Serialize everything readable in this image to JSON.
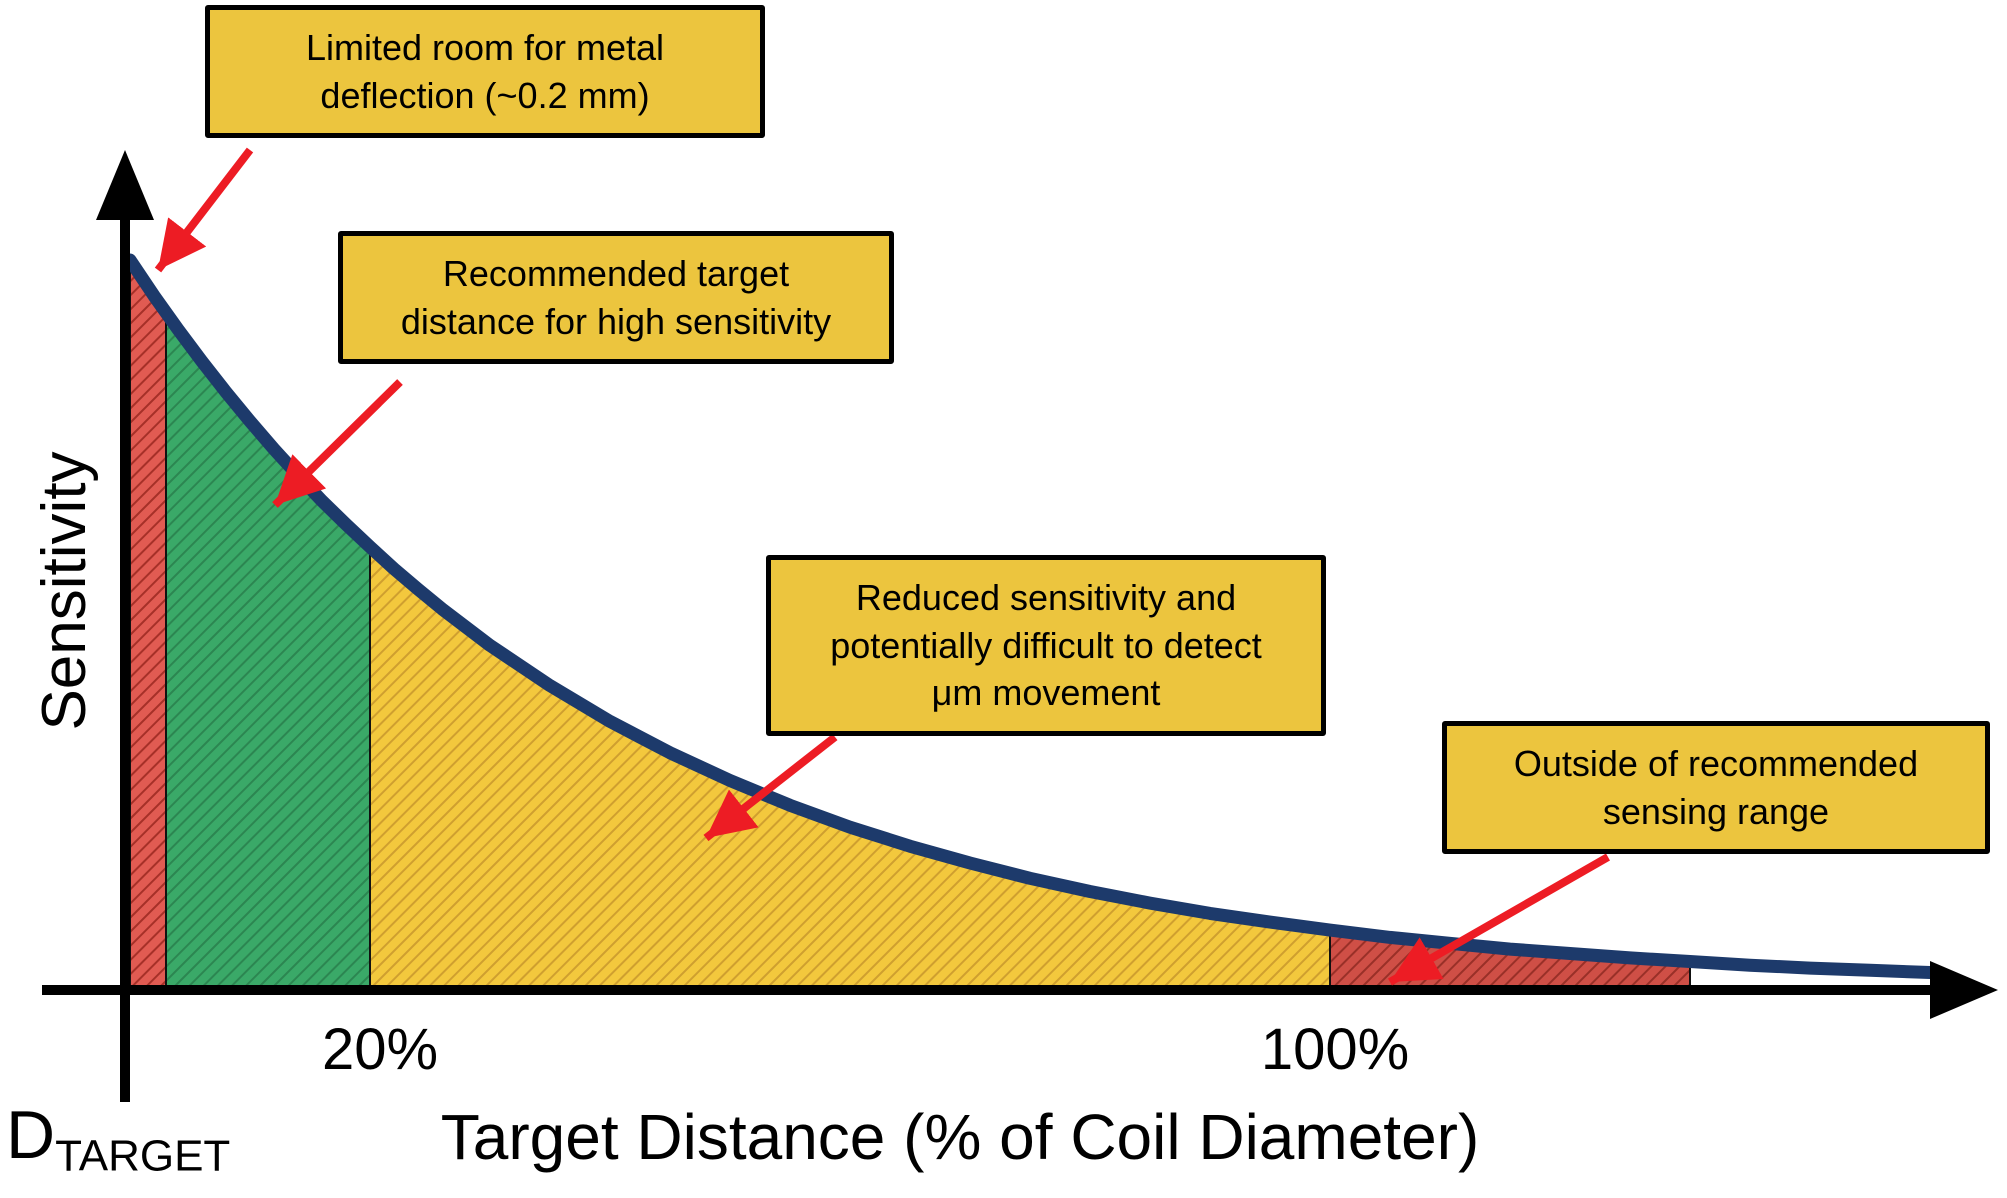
{
  "axes": {
    "y_label": "Sensitivity",
    "x_label": "Target Distance (% of Coil Diameter)",
    "origin_label_main": "D",
    "origin_label_sub": "TARGET",
    "ticks": [
      {
        "label": "20%",
        "pct": 20
      },
      {
        "label": "100%",
        "pct": 100
      }
    ]
  },
  "callouts": [
    {
      "id": "limited-deflection",
      "text": "Limited room for metal\ndeflection (~0.2 mm)"
    },
    {
      "id": "recommended",
      "text": "Recommended target\ndistance for high sensitivity"
    },
    {
      "id": "reduced",
      "text": "Reduced sensitivity and\npotentially difficult to detect\nμm movement"
    },
    {
      "id": "outside",
      "text": "Outside of recommended\nsensing range"
    }
  ],
  "colors": {
    "callout_bg": "#ecc53e",
    "callout_border": "#000000",
    "arrow": "#ed1c24",
    "axis": "#000000",
    "curve": "#1d3a6b"
  },
  "chart_data": {
    "type": "area",
    "title": "",
    "xlabel": "Target Distance (% of Coil Diameter)",
    "ylabel": "Sensitivity",
    "x_unit": "% of coil diameter",
    "x_range_pct": [
      0,
      152
    ],
    "ylim": [
      0,
      1
    ],
    "grid": false,
    "x_ticks": [
      {
        "pct": 20,
        "label": "20%"
      },
      {
        "pct": 100,
        "label": "100%"
      }
    ],
    "curve_color": "#1d3a6b",
    "curve": {
      "x_pct": [
        0,
        2,
        4,
        6,
        8,
        10,
        12,
        14,
        16,
        18,
        20,
        22,
        24,
        26,
        28,
        30,
        35,
        40,
        45,
        50,
        55,
        60,
        65,
        70,
        75,
        80,
        85,
        90,
        95,
        100,
        105,
        110,
        115,
        120,
        125,
        130,
        135,
        140,
        145,
        150
      ],
      "y_rel": [
        1.0,
        0.951,
        0.905,
        0.861,
        0.819,
        0.779,
        0.741,
        0.705,
        0.67,
        0.638,
        0.607,
        0.577,
        0.549,
        0.522,
        0.497,
        0.472,
        0.417,
        0.368,
        0.325,
        0.287,
        0.253,
        0.223,
        0.197,
        0.174,
        0.153,
        0.135,
        0.119,
        0.105,
        0.093,
        0.082,
        0.072,
        0.064,
        0.056,
        0.05,
        0.044,
        0.039,
        0.034,
        0.03,
        0.027,
        0.024
      ]
    },
    "regions": [
      {
        "name": "limited-deflection",
        "from_pct": 0,
        "to_pct": 3,
        "fill": "#e15b52",
        "hatch": "#a63028"
      },
      {
        "name": "recommended",
        "from_pct": 3,
        "to_pct": 20,
        "fill": "#3aa968",
        "hatch": "#2c8651"
      },
      {
        "name": "reduced",
        "from_pct": 20,
        "to_pct": 100,
        "fill": "#f3c83d",
        "hatch": "#cf9f2f"
      },
      {
        "name": "outside",
        "from_pct": 100,
        "to_pct": 130,
        "fill": "#cf4f46",
        "hatch": "#993028"
      }
    ]
  }
}
